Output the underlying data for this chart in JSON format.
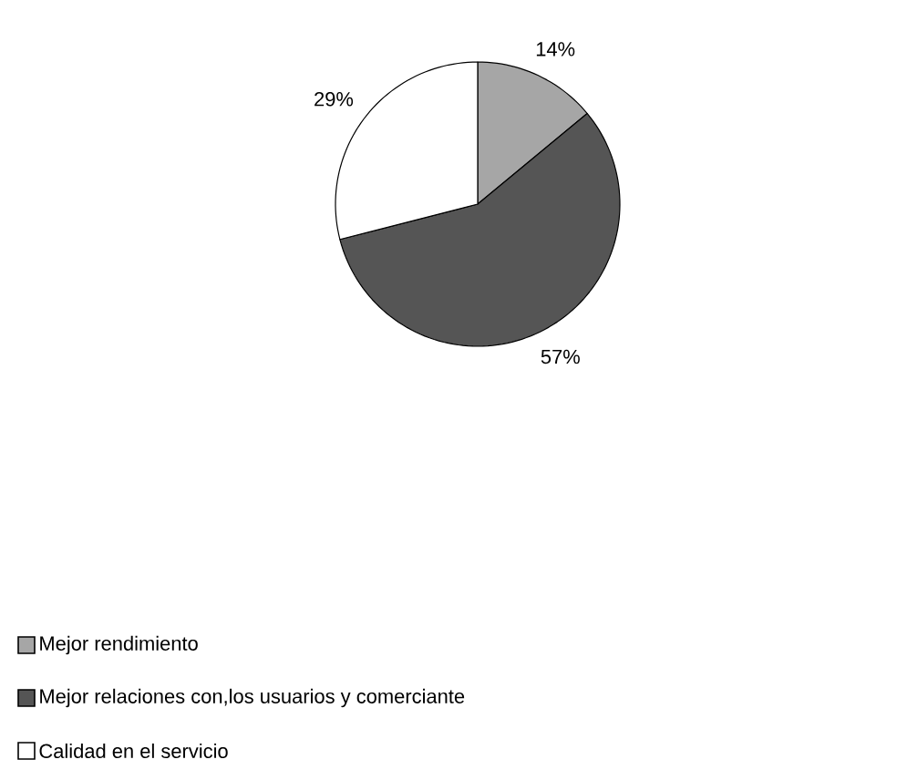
{
  "chart_data": {
    "type": "pie",
    "categories": [
      "Mejor rendimiento",
      "Mejor relaciones con,los usuarios y comerciante",
      "Calidad en el servicio"
    ],
    "values": [
      14,
      57,
      29
    ],
    "colors": [
      "#a6a6a6",
      "#555555",
      "#ffffff"
    ],
    "value_labels": [
      "14%",
      "57%",
      "29%"
    ],
    "legend": "bottom"
  }
}
